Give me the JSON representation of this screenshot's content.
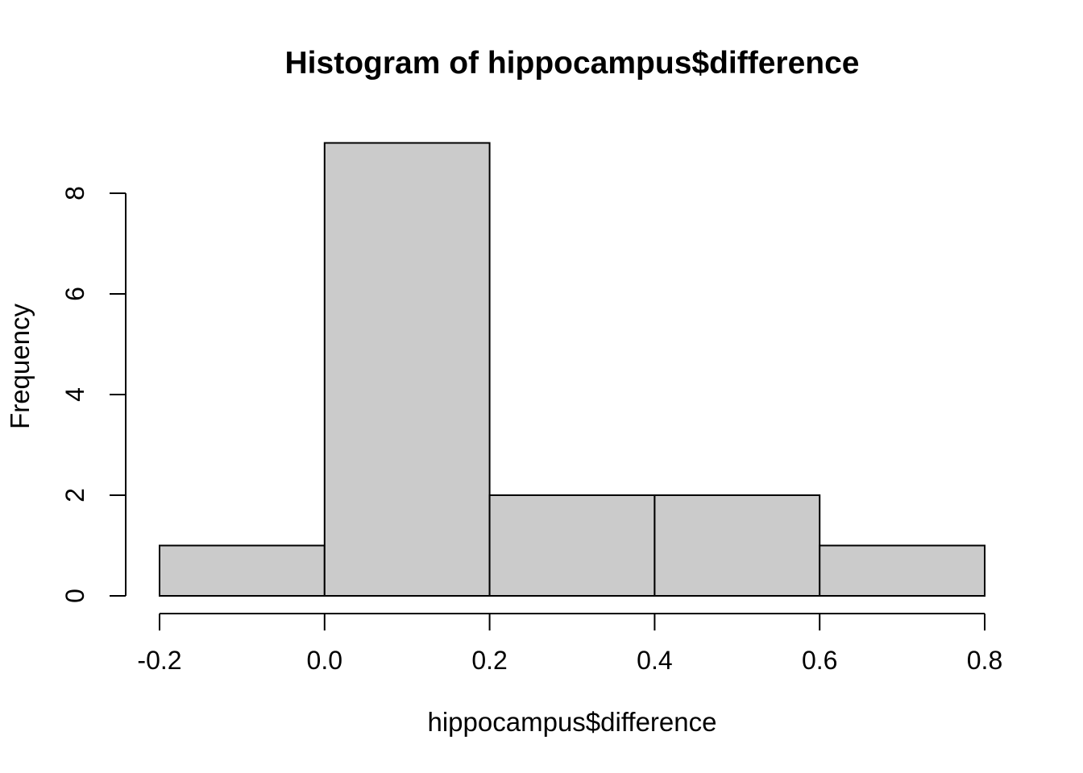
{
  "chart_data": {
    "type": "bar",
    "subtype": "histogram",
    "title": "Histogram of hippocampus$difference",
    "xlabel": "hippocampus$difference",
    "ylabel": "Frequency",
    "bins": [
      {
        "from": -0.2,
        "to": 0.0,
        "count": 1
      },
      {
        "from": 0.0,
        "to": 0.2,
        "count": 9
      },
      {
        "from": 0.2,
        "to": 0.4,
        "count": 2
      },
      {
        "from": 0.4,
        "to": 0.6,
        "count": 2
      },
      {
        "from": 0.6,
        "to": 0.8,
        "count": 1
      }
    ],
    "categories": [
      "-0.2–0.0",
      "0.0–0.2",
      "0.2–0.4",
      "0.4–0.6",
      "0.6–0.8"
    ],
    "values": [
      1,
      9,
      2,
      2,
      1
    ],
    "xlim": [
      -0.2,
      0.8
    ],
    "ylim": [
      0,
      9
    ],
    "x_ticks": [
      -0.2,
      0.0,
      0.2,
      0.4,
      0.6,
      0.8
    ],
    "x_tick_labels": [
      "-0.2",
      "0.0",
      "0.2",
      "0.4",
      "0.6",
      "0.8"
    ],
    "y_ticks": [
      0,
      2,
      4,
      6,
      8
    ],
    "y_tick_labels": [
      "0",
      "2",
      "4",
      "6",
      "8"
    ],
    "grid": false,
    "legend": "none",
    "colors": {
      "bar_fill": "#CBCBCB",
      "bar_stroke": "#000000",
      "axis": "#000000",
      "text": "#000000",
      "background": "#FFFFFF"
    }
  }
}
